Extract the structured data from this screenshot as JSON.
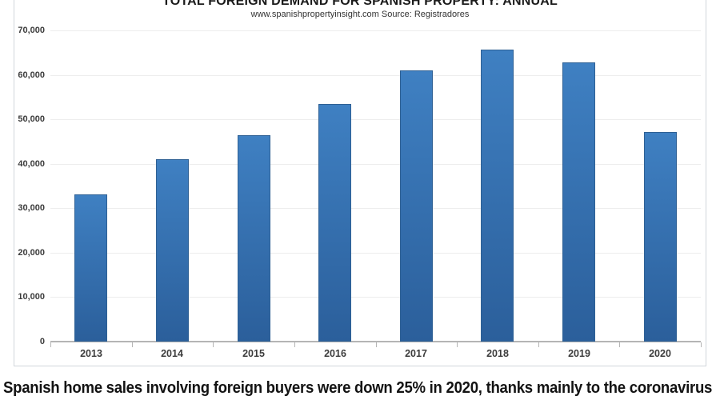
{
  "chart": {
    "title": "TOTAL FOREIGN DEMAND FOR SPANISH PROPERTY: ANNUAL",
    "subtitle": "www.spanishpropertyinsight.com Source: Registradores"
  },
  "article": {
    "headline": "Spanish home sales involving foreign buyers were down 25% in 2020, thanks mainly to the coronavirus"
  },
  "chart_data": {
    "type": "bar",
    "title": "TOTAL FOREIGN DEMAND FOR SPANISH PROPERTY: ANNUAL",
    "subtitle": "www.spanishpropertyinsight.com Source: Registradores",
    "categories": [
      "2013",
      "2014",
      "2015",
      "2016",
      "2017",
      "2018",
      "2019",
      "2020"
    ],
    "values": [
      33100,
      41000,
      46400,
      53400,
      61000,
      65600,
      62800,
      47100
    ],
    "xlabel": "",
    "ylabel": "",
    "ylim": [
      0,
      70000
    ],
    "ytick_step": 10000,
    "ytick_labels": [
      "0",
      "10,000",
      "20,000",
      "30,000",
      "40,000",
      "50,000",
      "60,000",
      "70,000"
    ],
    "grid": true,
    "legend": "none",
    "colors": {
      "bar_top": "#3f80c2",
      "bar_bottom": "#2b5f9b",
      "bar_border": "#2e6094",
      "gridline": "#ededed",
      "axis": "#b5b5b5",
      "tick_label": "#3c3c3c"
    }
  }
}
